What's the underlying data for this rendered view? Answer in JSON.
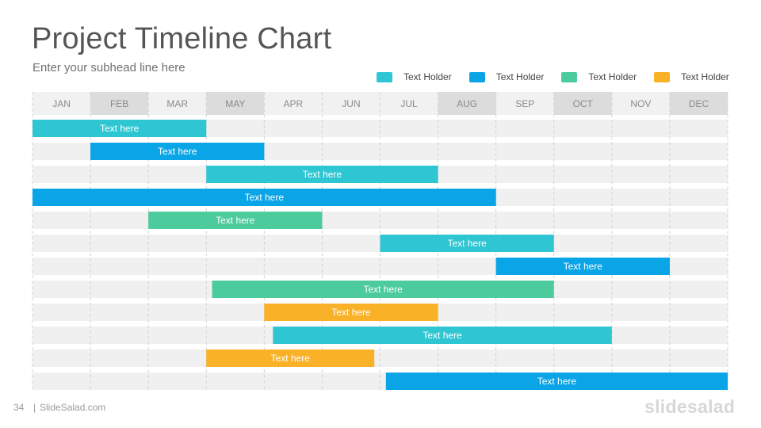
{
  "header": {
    "title": "Project Timeline Chart",
    "subtitle": "Enter your subhead line here"
  },
  "legend": [
    {
      "label": "Text Holder",
      "color": "#2ec6d3"
    },
    {
      "label": "Text Holder",
      "color": "#0aa5e6"
    },
    {
      "label": "Text Holder",
      "color": "#4ccb9d"
    },
    {
      "label": "Text Holder",
      "color": "#f9b128"
    }
  ],
  "chart_data": {
    "type": "gantt",
    "months": [
      "JAN",
      "FEB",
      "MAR",
      "MAY",
      "APR",
      "JUN",
      "JUL",
      "AUG",
      "SEP",
      "OCT",
      "NOV",
      "DEC"
    ],
    "month_header_colors": [
      "#f1f1f1",
      "#dcdcdc",
      "#f1f1f1",
      "#dcdcdc",
      "#f1f1f1",
      "#f1f1f1",
      "#f1f1f1",
      "#dcdcdc",
      "#f1f1f1",
      "#dcdcdc",
      "#f1f1f1",
      "#dcdcdc"
    ],
    "tasks": [
      {
        "label": "Text here",
        "start": 0.0,
        "end": 3.0,
        "color": "#2ec6d3"
      },
      {
        "label": "Text here",
        "start": 1.0,
        "end": 4.0,
        "color": "#0aa5e6"
      },
      {
        "label": "Text here",
        "start": 3.0,
        "end": 7.0,
        "color": "#2ec6d3"
      },
      {
        "label": "Text here",
        "start": 0.0,
        "end": 8.0,
        "color": "#0aa5e6"
      },
      {
        "label": "Text here",
        "start": 2.0,
        "end": 5.0,
        "color": "#4ccb9d"
      },
      {
        "label": "Text here",
        "start": 6.0,
        "end": 9.0,
        "color": "#2ec6d3"
      },
      {
        "label": "Text here",
        "start": 8.0,
        "end": 11.0,
        "color": "#0aa5e6"
      },
      {
        "label": "Text here",
        "start": 3.1,
        "end": 9.0,
        "color": "#4ccb9d"
      },
      {
        "label": "Text here",
        "start": 4.0,
        "end": 7.0,
        "color": "#f9b128"
      },
      {
        "label": "Text here",
        "start": 4.15,
        "end": 10.0,
        "color": "#2ec6d3"
      },
      {
        "label": "Text here",
        "start": 3.0,
        "end": 5.9,
        "color": "#f9b128"
      },
      {
        "label": "Text here",
        "start": 6.1,
        "end": 12.0,
        "color": "#0aa5e6"
      }
    ]
  },
  "footer": {
    "page_number": "34",
    "separator": "|",
    "site": "SlideSalad.com",
    "logo": "slidesalad"
  }
}
